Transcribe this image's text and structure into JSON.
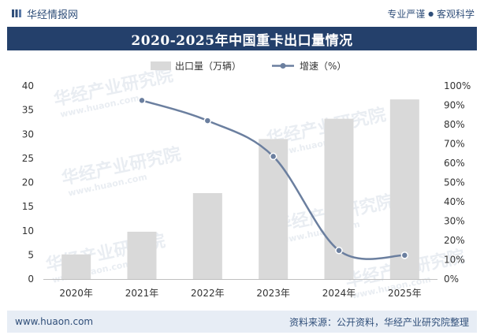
{
  "header": {
    "brand": "华经情报网",
    "slogan_left": "专业严谨",
    "slogan_sep": "●",
    "slogan_right": "客观科学"
  },
  "footer": {
    "url": "www.huaon.com",
    "source": "资料来源：公开资料，华经产业研究院整理"
  },
  "watermark": {
    "text": "华经产业研究院",
    "sub": "www.huaon.com"
  },
  "colors": {
    "bar": "#d9d9d9",
    "line": "#6b7f9f",
    "title_bg": "#24406b",
    "brand": "#2f4e79"
  },
  "chart_data": {
    "type": "bar",
    "title": "2020-2025年中国重卡出口量情况",
    "categories": [
      "2020年",
      "2021年",
      "2022年",
      "2023年",
      "2024年",
      "2025年"
    ],
    "series": [
      {
        "name": "出口量（万辆）",
        "type": "bar",
        "axis": "left",
        "values": [
          5.1,
          9.8,
          17.8,
          29.0,
          33.2,
          37.2
        ]
      },
      {
        "name": "增速（%）",
        "type": "line",
        "axis": "right",
        "values": [
          null,
          92.5,
          82.0,
          63.5,
          14.8,
          12.3
        ]
      }
    ],
    "y_left": {
      "min": 0,
      "max": 40,
      "step": 5,
      "ticks": [
        "0",
        "5",
        "10",
        "15",
        "20",
        "25",
        "30",
        "35",
        "40"
      ]
    },
    "y_right": {
      "min": 0,
      "max": 100,
      "step": 10,
      "ticks": [
        "0%",
        "10%",
        "20%",
        "30%",
        "40%",
        "50%",
        "60%",
        "70%",
        "80%",
        "90%",
        "100%"
      ]
    },
    "grid": false,
    "legend": "top-center"
  }
}
